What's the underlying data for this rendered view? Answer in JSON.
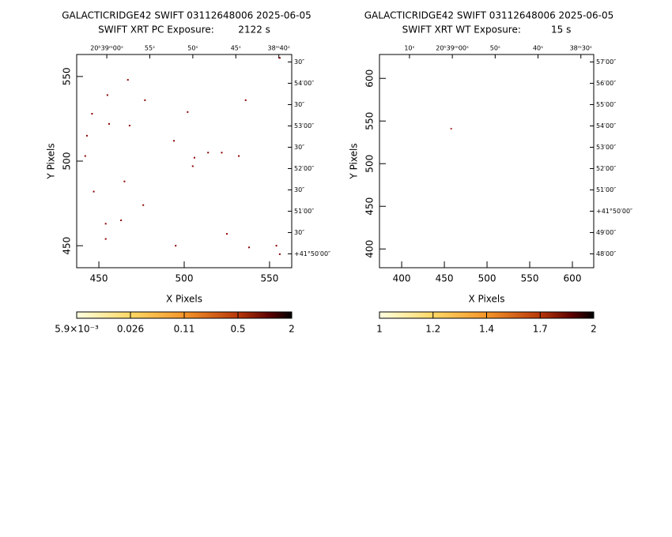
{
  "chart_data": [
    {
      "type": "scatter",
      "title": "GALACTICRIDGE42 SWIFT 03112648006 2025-06-05",
      "subtitle": "SWIFT XRT PC Exposure:        2122 s",
      "xlabel": "X Pixels",
      "ylabel": "Y Pixels",
      "color": "#8b0000",
      "x": [
        556,
        467,
        455,
        477,
        536,
        446,
        502,
        456,
        468,
        443,
        494,
        514,
        522,
        532,
        506,
        442,
        505,
        465,
        447,
        476,
        463,
        454,
        525,
        454,
        495,
        538,
        554,
        556
      ],
      "y": [
        561,
        548,
        539,
        536,
        536,
        528,
        529,
        522,
        521,
        515,
        512,
        505,
        505,
        503,
        502,
        503,
        497,
        488,
        482,
        474,
        465,
        463,
        457,
        454,
        450,
        449,
        450,
        445
      ],
      "xlim": [
        437,
        563
      ],
      "ylim": [
        437,
        563
      ],
      "xticks": [
        450,
        500,
        550
      ],
      "yticks": [
        450,
        500,
        550
      ],
      "top_labels": [
        "20ʰ39ᵐ00ˢ",
        "55ˢ",
        "50ˢ",
        "45ˢ",
        "38ᵐ40ˢ"
      ],
      "right_labels": [
        "30″",
        "54′00″",
        "30″",
        "53′00″",
        "30″",
        "52′00″",
        "30″",
        "51′00″",
        "30″",
        "+41°50′00″"
      ],
      "colorbar": [
        "5.9×10⁻³",
        "0.026",
        "0.11",
        "0.5",
        "2"
      ]
    },
    {
      "type": "scatter",
      "title": "GALACTICRIDGE42 SWIFT 03112648006 2025-06-05",
      "subtitle": "SWIFT XRT WT Exposure:          15 s",
      "xlabel": "X Pixels",
      "ylabel": "Y Pixels",
      "color": "#b03030",
      "x": [
        458
      ],
      "y": [
        541
      ],
      "xlim": [
        374,
        625
      ],
      "ylim": [
        378,
        628
      ],
      "xticks": [
        400,
        450,
        500,
        550,
        600
      ],
      "yticks": [
        400,
        450,
        500,
        550,
        600
      ],
      "top_labels": [
        "10ˢ",
        "20ʰ39ᵐ00ˢ",
        "50ˢ",
        "40ˢ",
        "38ᵐ30ˢ"
      ],
      "right_labels": [
        "57′00″",
        "56′00″",
        "55′00″",
        "54′00″",
        "53′00″",
        "52′00″",
        "51′00″",
        "+41°50′00″",
        "49′00″",
        "48′00″"
      ],
      "colorbar": [
        "1",
        "1.2",
        "1.4",
        "1.7",
        "2"
      ]
    }
  ]
}
